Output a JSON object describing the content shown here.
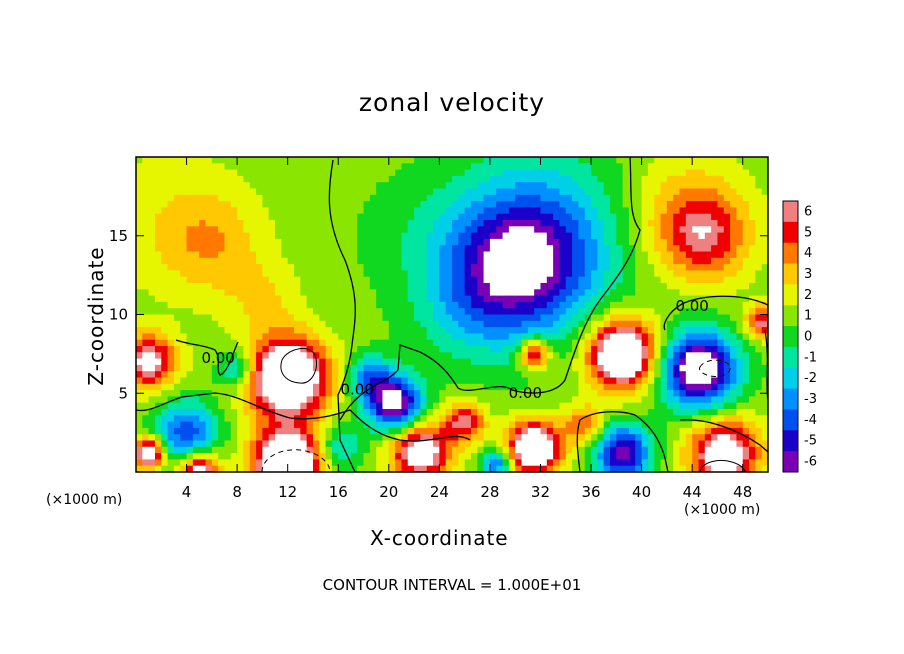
{
  "chart_data": {
    "type": "heatmap",
    "title": "zonal velocity",
    "xlabel": "X-coordinate",
    "ylabel": "Z-coordinate",
    "x_unit_left": "(×1000 m)",
    "x_unit_right": "(×1000 m)",
    "footer": "CONTOUR INTERVAL = 1.000E+01",
    "xlim": [
      0,
      50
    ],
    "ylim": [
      0,
      20
    ],
    "x_ticks": [
      4,
      8,
      12,
      16,
      20,
      24,
      28,
      32,
      36,
      40,
      44,
      48
    ],
    "y_ticks": [
      5,
      10,
      15
    ],
    "colorbar": {
      "levels": [
        -6,
        -5,
        -4,
        -3,
        -2,
        -1,
        0,
        1,
        2,
        3,
        4,
        5,
        6
      ],
      "colors": [
        "#7a00b5",
        "#1a00c8",
        "#0050f0",
        "#0090ff",
        "#00cfe8",
        "#00e6a0",
        "#10d820",
        "#8ae600",
        "#e6f500",
        "#ffc800",
        "#ff7800",
        "#f00000",
        "#f08080"
      ]
    },
    "contour_labels": [
      {
        "text": "0.00",
        "x": 6.5,
        "z": 7.2
      },
      {
        "text": "0.00",
        "x": 17.5,
        "z": 5.2
      },
      {
        "text": "0.00",
        "x": 44,
        "z": 10.5
      },
      {
        "text": "0.00",
        "x": 30.8,
        "z": 5.0
      }
    ],
    "field_features": [
      {
        "x": 30,
        "z": 13,
        "u": -6,
        "r": 5.5
      },
      {
        "x": 32.5,
        "z": 15,
        "u": -3,
        "r": 7
      },
      {
        "x": 2.5,
        "z": 16,
        "u": 1.2,
        "r": 6
      },
      {
        "x": 6,
        "z": 14.5,
        "u": 2,
        "r": 4
      },
      {
        "x": 10,
        "z": 11,
        "u": 1.5,
        "r": 3
      },
      {
        "x": 45,
        "z": 15,
        "u": 4,
        "r": 3.5
      },
      {
        "x": 43,
        "z": 16.5,
        "u": 2,
        "r": 5
      },
      {
        "x": 26,
        "z": 10,
        "u": -1.5,
        "r": 4
      },
      {
        "x": 22,
        "z": 15,
        "u": -0.8,
        "r": 5
      },
      {
        "x": 1,
        "z": 7,
        "u": 6,
        "r": 2.2
      },
      {
        "x": 12,
        "z": 6,
        "u": 9,
        "r": 3.2
      },
      {
        "x": 38.5,
        "z": 7.5,
        "u": 9,
        "r": 2.8
      },
      {
        "x": 44.5,
        "z": 6.5,
        "u": -9,
        "r": 3
      },
      {
        "x": 20.5,
        "z": 4.3,
        "u": -8,
        "r": 2.2
      },
      {
        "x": 18.5,
        "z": 6,
        "u": -4,
        "r": 1.8
      },
      {
        "x": 26,
        "z": 3.2,
        "u": 5,
        "r": 1.6
      },
      {
        "x": 31.5,
        "z": 7.5,
        "u": 6,
        "r": 1.2
      },
      {
        "x": 4,
        "z": 2.5,
        "u": -5,
        "r": 2.5
      },
      {
        "x": 1,
        "z": 1.2,
        "u": 8,
        "r": 1.2
      },
      {
        "x": 12,
        "z": 0.5,
        "u": 9,
        "r": 2.8
      },
      {
        "x": 5,
        "z": 0,
        "u": 7,
        "r": 1.6
      },
      {
        "x": 22.5,
        "z": 1.3,
        "u": 7,
        "r": 2.4
      },
      {
        "x": 31.5,
        "z": 1.5,
        "u": 8,
        "r": 2.2
      },
      {
        "x": 38.5,
        "z": 1.2,
        "u": -7,
        "r": 2.2
      },
      {
        "x": 46.5,
        "z": 1.2,
        "u": 7,
        "r": 2.8
      },
      {
        "x": 35.5,
        "z": 3,
        "u": 3.5,
        "r": 1.6
      },
      {
        "x": 8,
        "z": 6.5,
        "u": -3.5,
        "r": 1.5
      },
      {
        "x": 28.5,
        "z": 0.5,
        "u": -5,
        "r": 1.2
      },
      {
        "x": 16,
        "z": 1.5,
        "u": -3,
        "r": 1.8
      },
      {
        "x": 49.5,
        "z": 9.5,
        "u": 5,
        "r": 1.3
      }
    ]
  }
}
